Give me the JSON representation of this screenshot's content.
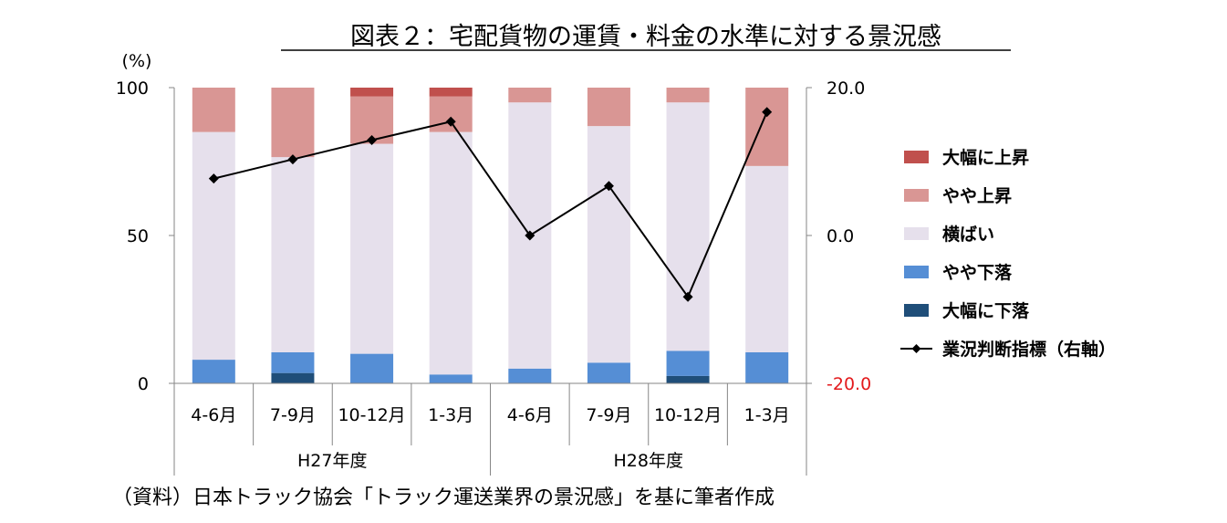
{
  "title": "図表２：宅配貨物の運賃・料金の水準に対する景況感",
  "source": "（資料）日本トラック協会「トラック運送業界の景況感」を基に筆者作成",
  "chart_data": {
    "type": "bar",
    "stacked": true,
    "left_axis": {
      "unit_label": "(%)",
      "ylim": [
        0,
        100
      ],
      "ticks": [
        0,
        50,
        100
      ],
      "tick_labels": [
        "0",
        "50",
        "100"
      ]
    },
    "right_axis": {
      "ylim": [
        -20,
        20
      ],
      "ticks": [
        -20,
        0,
        20
      ],
      "tick_labels": [
        "-20.0",
        "0.0",
        "20.0"
      ],
      "bottom_label_color": "#e31a1c"
    },
    "categories": [
      "4-6月",
      "7-9月",
      "10-12月",
      "1-3月",
      "4-6月",
      "7-9月",
      "10-12月",
      "1-3月"
    ],
    "groups": [
      {
        "label": "H27年度",
        "count": 4
      },
      {
        "label": "H28年度",
        "count": 4
      }
    ],
    "series": [
      {
        "name": "大幅に下落",
        "color": "#1f4e79",
        "values": [
          0,
          3.5,
          0,
          0,
          0,
          0,
          2.5,
          0
        ]
      },
      {
        "name": "やや下落",
        "color": "#558ed5",
        "values": [
          8,
          7,
          10,
          3,
          5,
          7,
          8.5,
          10.5
        ]
      },
      {
        "name": "横ばい",
        "color": "#e6e0ec",
        "values": [
          77,
          66,
          71,
          82,
          90,
          80,
          84,
          63
        ]
      },
      {
        "name": "やや上昇",
        "color": "#d99694",
        "values": [
          15,
          23.5,
          16,
          12,
          5,
          13,
          5,
          26.5
        ]
      },
      {
        "name": "大幅に上昇",
        "color": "#c0504d",
        "values": [
          0,
          0,
          3,
          3,
          0,
          0,
          0,
          0
        ]
      }
    ],
    "line_series": {
      "name": "業況判断指標（右軸）",
      "color": "#000000",
      "axis": "right",
      "values": [
        7.7,
        10.3,
        12.9,
        15.4,
        0,
        6.7,
        -8.3,
        16.7
      ]
    },
    "legend_order": [
      "大幅に上昇",
      "やや上昇",
      "横ばい",
      "やや下落",
      "大幅に下落",
      "業況判断指標（右軸）"
    ],
    "legend_position": "right",
    "grid": false
  }
}
